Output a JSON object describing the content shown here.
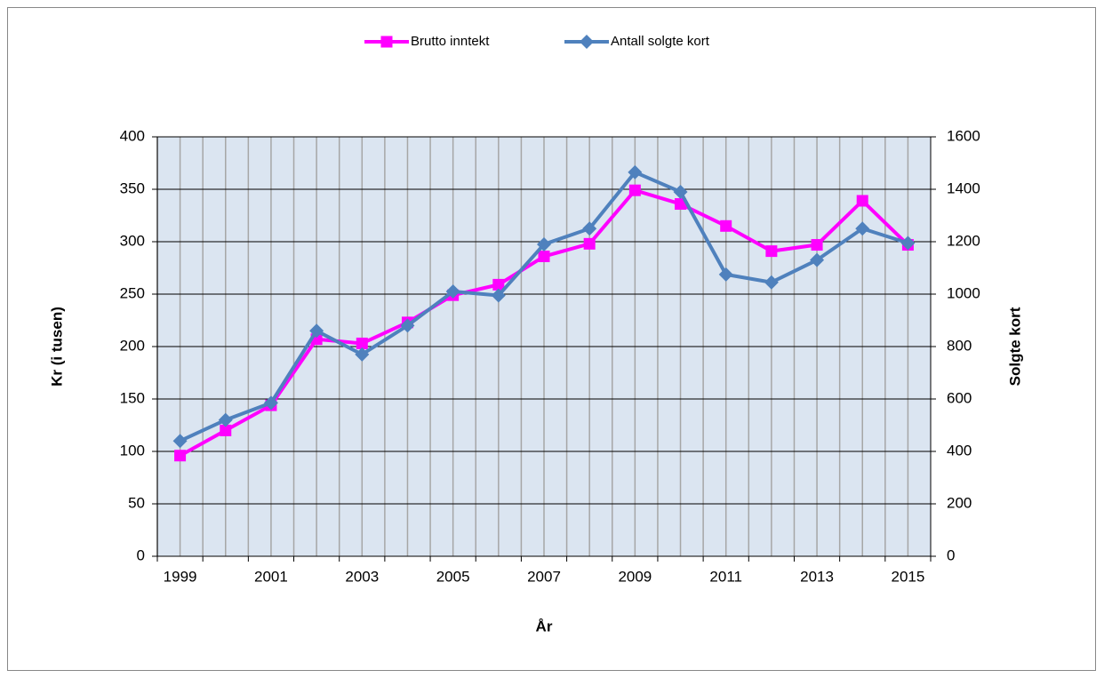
{
  "chart_data": {
    "type": "line",
    "x_label": "År",
    "y_label": "Kr (i tusen)",
    "y2_label": "Solgte kort",
    "categories": [
      "1999",
      null,
      "2001",
      null,
      "2003",
      null,
      "2005",
      null,
      "2007",
      null,
      "2009",
      null,
      "2011",
      null,
      "2013",
      null,
      "2015"
    ],
    "series": [
      {
        "name": "Brutto inntekt",
        "color": "#ff00ff",
        "marker": "square",
        "values": [
          96,
          120,
          144,
          207,
          203,
          223,
          249,
          259,
          286,
          298,
          349,
          336,
          315,
          291,
          297,
          339,
          297
        ]
      },
      {
        "name": "Antall solgte kort",
        "color": "#4f81bd",
        "marker": "diamond",
        "axis": "y2",
        "values": [
          440,
          520,
          585,
          860,
          770,
          880,
          1010,
          995,
          1190,
          1250,
          1465,
          1390,
          1075,
          1045,
          1130,
          1250,
          1195
        ]
      }
    ],
    "ylim": [
      0,
      400
    ],
    "yticks": [
      0,
      50,
      100,
      150,
      200,
      250,
      300,
      350,
      400
    ],
    "y2lim": [
      0,
      1600
    ],
    "y2ticks": [
      0,
      200,
      400,
      600,
      800,
      1000,
      1200,
      1400,
      1600
    ],
    "grid": true,
    "legend": "top"
  }
}
